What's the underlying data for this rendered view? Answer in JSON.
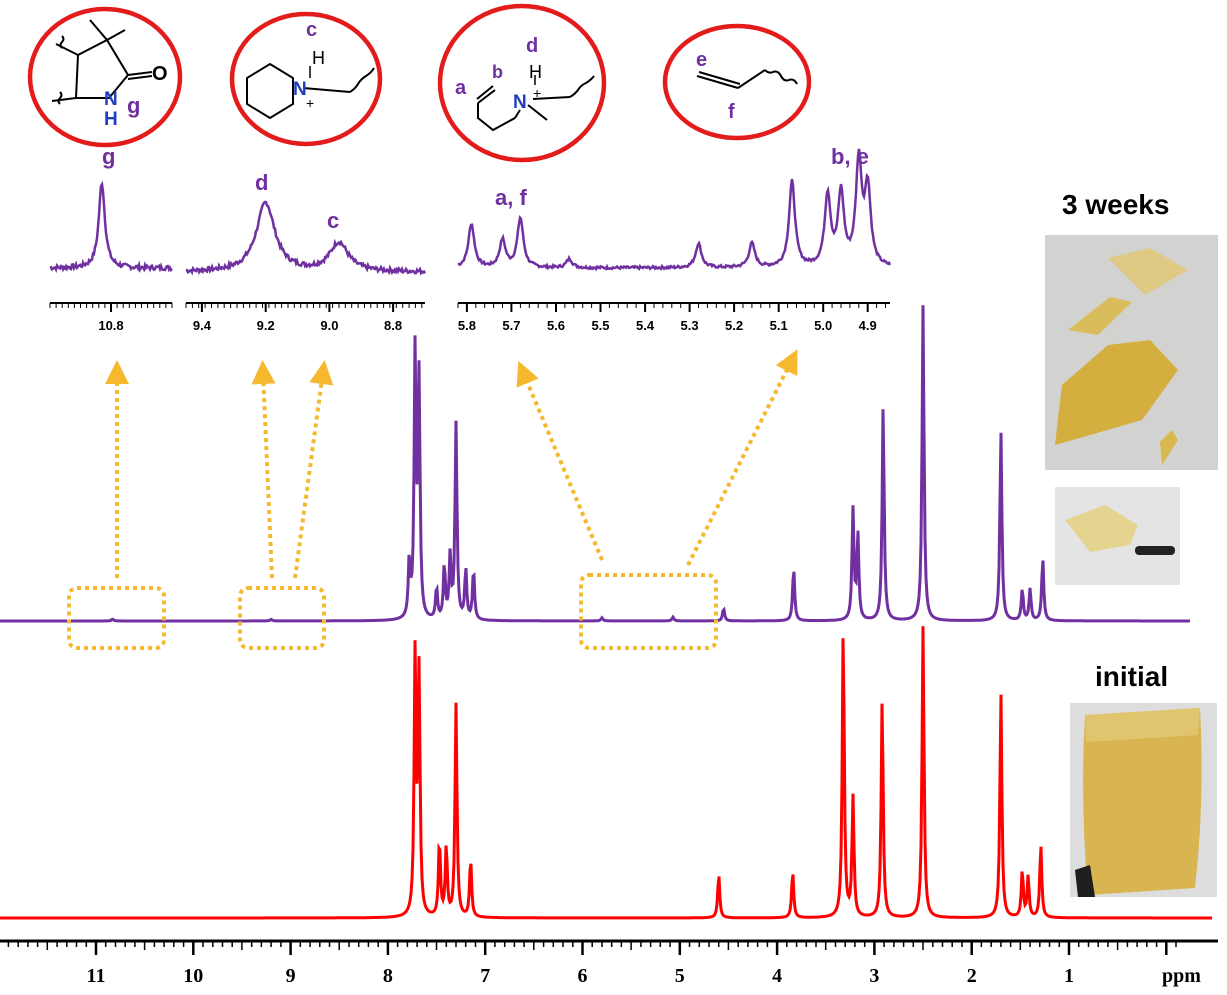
{
  "chart_data": {
    "type": "line",
    "title": "",
    "xlabel": "ppm",
    "ylabel": "",
    "xlim": [
      12,
      0
    ],
    "x_ticks": [
      "11",
      "10",
      "9",
      "8",
      "7",
      "6",
      "5",
      "4",
      "3",
      "2",
      "1"
    ],
    "x_tick_values": [
      11,
      10,
      9,
      8,
      7,
      6,
      5,
      4,
      3,
      2,
      1
    ],
    "series": [
      {
        "name": "3 weeks",
        "color": "#7030a0",
        "peaks": [
          {
            "ppm": 10.83,
            "height": 0.006
          },
          {
            "ppm": 9.2,
            "height": 0.005
          },
          {
            "ppm": 7.78,
            "height": 0.18
          },
          {
            "ppm": 7.72,
            "height": 0.85
          },
          {
            "ppm": 7.68,
            "height": 0.75
          },
          {
            "ppm": 7.5,
            "height": 0.1
          },
          {
            "ppm": 7.42,
            "height": 0.17
          },
          {
            "ppm": 7.36,
            "height": 0.2
          },
          {
            "ppm": 7.3,
            "height": 0.62
          },
          {
            "ppm": 7.2,
            "height": 0.16
          },
          {
            "ppm": 7.12,
            "height": 0.16
          },
          {
            "ppm": 5.8,
            "height": 0.01
          },
          {
            "ppm": 5.07,
            "height": 0.012
          },
          {
            "ppm": 4.55,
            "height": 0.04
          },
          {
            "ppm": 3.83,
            "height": 0.17
          },
          {
            "ppm": 3.22,
            "height": 0.35
          },
          {
            "ppm": 3.17,
            "height": 0.27
          },
          {
            "ppm": 2.91,
            "height": 0.68
          },
          {
            "ppm": 2.5,
            "height": 1.0
          },
          {
            "ppm": 1.7,
            "height": 0.6
          },
          {
            "ppm": 1.48,
            "height": 0.1
          },
          {
            "ppm": 1.4,
            "height": 0.1
          },
          {
            "ppm": 1.27,
            "height": 0.2
          }
        ]
      },
      {
        "name": "initial",
        "color": "#ff0000",
        "peaks": [
          {
            "ppm": 7.72,
            "height": 0.9
          },
          {
            "ppm": 7.68,
            "height": 0.82
          },
          {
            "ppm": 7.47,
            "height": 0.26
          },
          {
            "ppm": 7.4,
            "height": 0.24
          },
          {
            "ppm": 7.3,
            "height": 0.73
          },
          {
            "ppm": 7.15,
            "height": 0.2
          },
          {
            "ppm": 4.6,
            "height": 0.15
          },
          {
            "ppm": 3.84,
            "height": 0.16
          },
          {
            "ppm": 3.32,
            "height": 1.0
          },
          {
            "ppm": 3.22,
            "height": 0.41
          },
          {
            "ppm": 2.92,
            "height": 0.75
          },
          {
            "ppm": 2.5,
            "height": 1.0
          },
          {
            "ppm": 1.7,
            "height": 0.77
          },
          {
            "ppm": 1.48,
            "height": 0.16
          },
          {
            "ppm": 1.42,
            "height": 0.14
          },
          {
            "ppm": 1.29,
            "height": 0.25
          }
        ]
      }
    ],
    "insets": [
      {
        "label": "g",
        "ticks": [
          "10.8"
        ],
        "tick_values": [
          10.8
        ],
        "xlim": [
          11.0,
          10.6
        ],
        "peaks": [
          {
            "ppm": 10.83,
            "height": 0.9,
            "label": "g"
          }
        ]
      },
      {
        "label": "c, d",
        "ticks": [
          "9.4",
          "9.2",
          "9.0",
          "8.8"
        ],
        "tick_values": [
          9.4,
          9.2,
          9.0,
          8.8
        ],
        "xlim": [
          9.45,
          8.7
        ],
        "peaks": [
          {
            "ppm": 9.2,
            "height": 0.6,
            "label": "d"
          },
          {
            "ppm": 8.97,
            "height": 0.25,
            "label": "c"
          }
        ]
      },
      {
        "label": "a, f / b, e",
        "ticks": [
          "5.8",
          "5.7",
          "5.6",
          "5.5",
          "5.4",
          "5.3",
          "5.2",
          "5.1",
          "5.0",
          "4.9"
        ],
        "tick_values": [
          5.8,
          5.7,
          5.6,
          5.5,
          5.4,
          5.3,
          5.2,
          5.1,
          5.0,
          4.9
        ],
        "xlim": [
          5.82,
          4.85
        ],
        "peaks": [
          {
            "ppm": 5.79,
            "height": 0.4,
            "label": "a, f"
          },
          {
            "ppm": 5.72,
            "height": 0.25
          },
          {
            "ppm": 5.68,
            "height": 0.45
          },
          {
            "ppm": 5.57,
            "height": 0.08
          },
          {
            "ppm": 5.28,
            "height": 0.22
          },
          {
            "ppm": 5.16,
            "height": 0.22
          },
          {
            "ppm": 5.07,
            "height": 0.78
          },
          {
            "ppm": 4.99,
            "height": 0.65
          },
          {
            "ppm": 4.96,
            "height": 0.66
          },
          {
            "ppm": 4.92,
            "height": 0.95,
            "label": "b, e"
          },
          {
            "ppm": 4.9,
            "height": 0.7
          }
        ]
      }
    ],
    "peak_labels": {
      "g": "g",
      "d": "d",
      "c": "c",
      "af": "a, f",
      "be": "b, e"
    },
    "molecule_labels": {
      "mol1": {
        "o": "O",
        "n": "N",
        "h": "H",
        "tag": "g"
      },
      "mol2": {
        "c": "c",
        "h": "H",
        "n": "N",
        "plus": "+"
      },
      "mol3": {
        "a": "a",
        "b": "b",
        "d": "d",
        "h": "H",
        "n": "N",
        "plus": "+"
      },
      "mol4": {
        "e": "e",
        "f": "f"
      }
    },
    "side_labels": {
      "weeks3": "3 weeks",
      "initial": "initial"
    },
    "colors": {
      "purple": "#7030a0",
      "red": "#ff0000",
      "circle": "#e31b1b",
      "arrow": "#f5b82e"
    }
  }
}
